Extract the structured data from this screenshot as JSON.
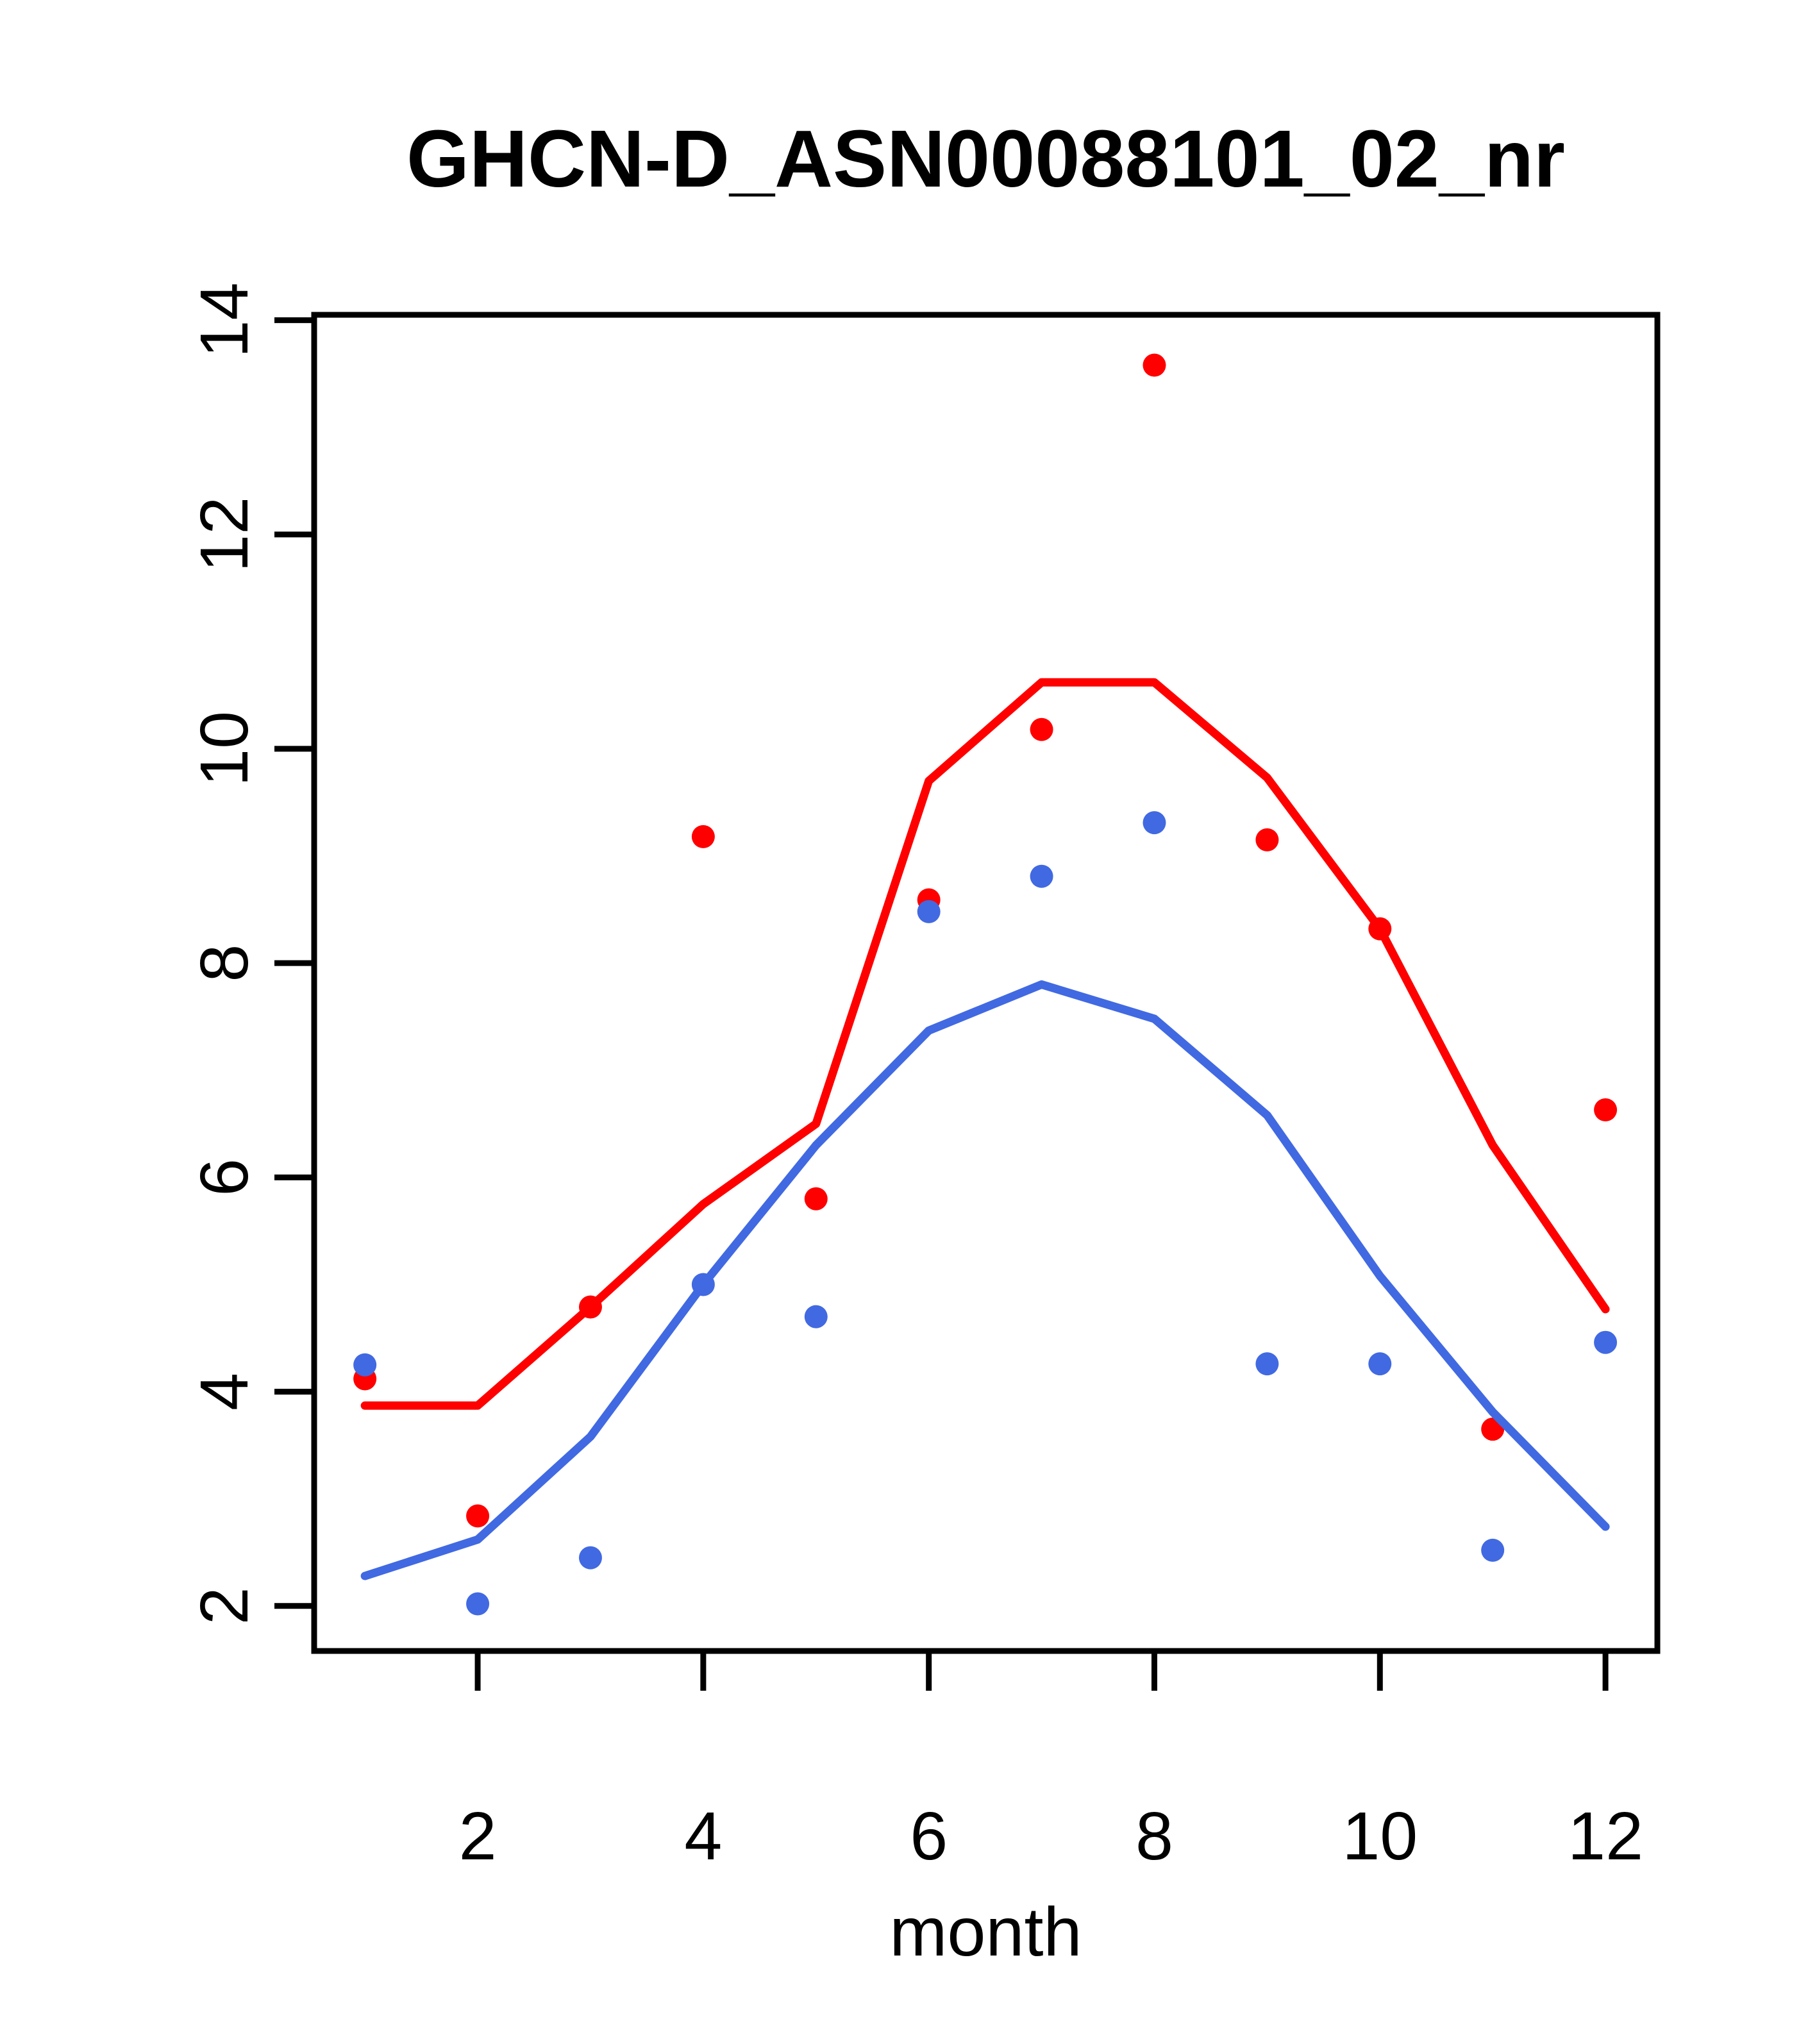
{
  "chart_data": {
    "type": "scatter",
    "title": "GHCN-D_ASN00088101_02_nr",
    "xlabel": "month",
    "ylabel": "",
    "x": [
      1,
      2,
      3,
      4,
      5,
      6,
      7,
      8,
      9,
      10,
      11,
      12
    ],
    "series": [
      {
        "name": "red-points",
        "kind": "scatter",
        "color": "#FF0000",
        "values": [
          4.12,
          2.84,
          4.79,
          9.18,
          5.8,
          8.59,
          10.18,
          13.58,
          9.15,
          8.32,
          3.65,
          6.63
        ]
      },
      {
        "name": "blue-points",
        "kind": "scatter",
        "color": "#4169E1",
        "values": [
          4.25,
          2.02,
          2.45,
          5.0,
          4.7,
          8.48,
          8.81,
          9.31,
          4.26,
          4.26,
          2.52,
          4.46
        ]
      },
      {
        "name": "red-trend-line",
        "kind": "line",
        "color": "#FF0000",
        "values": [
          3.87,
          3.87,
          4.79,
          5.75,
          6.5,
          9.7,
          10.62,
          10.62,
          9.73,
          8.32,
          6.3,
          4.77
        ]
      },
      {
        "name": "blue-trend-line",
        "kind": "line",
        "color": "#4169E1",
        "values": [
          2.28,
          2.62,
          3.58,
          5.0,
          6.3,
          7.37,
          7.8,
          7.48,
          6.58,
          5.08,
          3.81,
          2.74
        ]
      }
    ],
    "x_ticks": [
      2,
      4,
      6,
      8,
      10,
      12
    ],
    "y_ticks": [
      2,
      4,
      6,
      8,
      10,
      12,
      14
    ],
    "xlim": [
      0.55,
      12.46
    ],
    "ylim": [
      1.58,
      14.05
    ],
    "grid": false,
    "legend": null,
    "axis_color": "#000000",
    "background_color": "#FFFFFF"
  }
}
